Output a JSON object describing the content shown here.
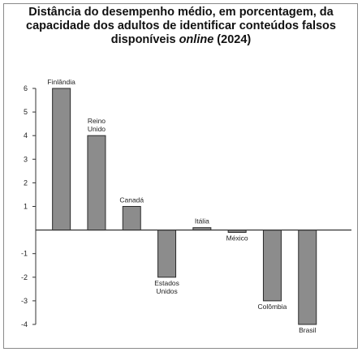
{
  "title": {
    "line1": "Distância do desempenho médio, em porcentagem, da",
    "line2": "capacidade dos adultos de identificar conteúdos falsos",
    "line3_pre": "disponíveis ",
    "line3_em": "online",
    "line3_post": " (2024)"
  },
  "chart_data": {
    "type": "bar",
    "title": "Distância do desempenho médio, em porcentagem, da capacidade dos adultos de identificar conteúdos falsos disponíveis online (2024)",
    "categories": [
      "Finlândia",
      "Reino Unido",
      "Canadá",
      "Estados Unidos",
      "Itália",
      "México",
      "Colômbia",
      "Brasil"
    ],
    "category_lines": [
      [
        "Finlândia"
      ],
      [
        "Reino",
        "Unido"
      ],
      [
        "Canadá"
      ],
      [
        "Estados",
        "Unidos"
      ],
      [
        "Itália"
      ],
      [
        "México"
      ],
      [
        "Colômbia"
      ],
      [
        "Brasil"
      ]
    ],
    "values": [
      6,
      4,
      1,
      -2,
      0.1,
      -0.1,
      -3,
      -4
    ],
    "ylim": [
      -4,
      6
    ],
    "yticks": [
      6,
      5,
      4,
      3,
      2,
      1,
      -1,
      -2,
      -3,
      -4
    ],
    "grid": false,
    "colors": {
      "bar": "#8c8c8c",
      "bar_edge": "#2a2a2a",
      "axis": "#333333"
    }
  }
}
